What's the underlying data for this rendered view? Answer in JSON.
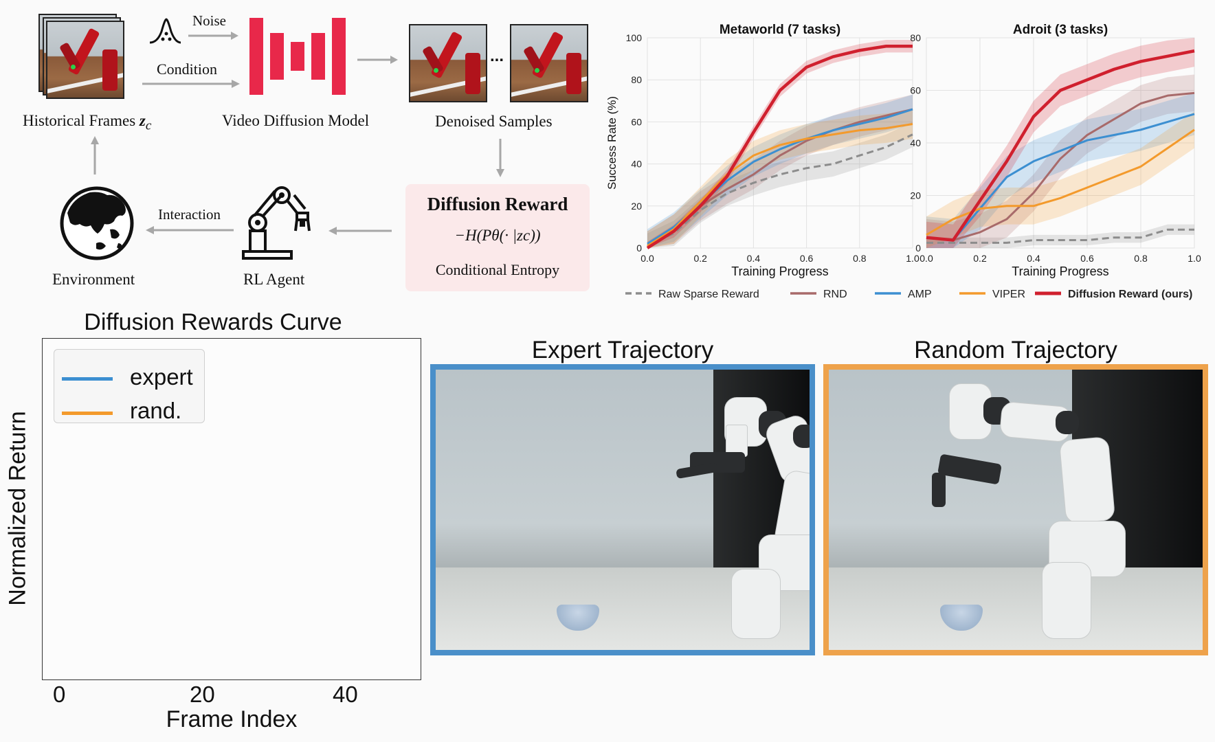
{
  "pipeline": {
    "historical_frames": "Historical Frames",
    "historical_frames_sym": "z",
    "historical_frames_sub": "c",
    "noise": "Noise",
    "condition": "Condition",
    "video_diffusion_model": "Video Diffusion Model",
    "denoised_samples": "Denoised Samples",
    "ellipsis": "...",
    "diffusion_reward_title": "Diffusion Reward",
    "diffusion_reward_formula": "−H(Pθ(· |zc))",
    "conditional_entropy": "Conditional Entropy",
    "interaction": "Interaction",
    "rl_agent": "RL Agent",
    "environment": "Environment"
  },
  "chart_data": [
    {
      "type": "line",
      "title": "Metaworld (7 tasks)",
      "xlabel": "Training Progress",
      "ylabel": "Success Rate (%)",
      "xlim": [
        0,
        1
      ],
      "ylim": [
        0,
        100
      ],
      "xticks": [
        "0.0",
        "0.2",
        "0.4",
        "0.6",
        "0.8",
        "1.0"
      ],
      "yticks": [
        "0",
        "20",
        "40",
        "60",
        "80",
        "100"
      ],
      "grid": true,
      "series": [
        {
          "name": "Raw Sparse Reward",
          "color": "#8c8c8c",
          "dashed": true,
          "x": [
            0,
            0.1,
            0.2,
            0.3,
            0.4,
            0.5,
            0.6,
            0.7,
            0.8,
            0.9,
            1.0
          ],
          "y": [
            1,
            7,
            18,
            26,
            31,
            35,
            38,
            40,
            44,
            48,
            54
          ],
          "band": 6
        },
        {
          "name": "RND",
          "color": "#a86a6a",
          "x": [
            0,
            0.1,
            0.2,
            0.3,
            0.4,
            0.5,
            0.6,
            0.7,
            0.8,
            0.9,
            1.0
          ],
          "y": [
            1,
            9,
            20,
            28,
            35,
            44,
            51,
            56,
            60,
            63,
            66
          ],
          "band": 7
        },
        {
          "name": "AMP",
          "color": "#3c8fd1",
          "x": [
            0,
            0.1,
            0.2,
            0.3,
            0.4,
            0.5,
            0.6,
            0.7,
            0.8,
            0.9,
            1.0
          ],
          "y": [
            2,
            10,
            21,
            32,
            41,
            47,
            52,
            56,
            59,
            62,
            66
          ],
          "band": 7
        },
        {
          "name": "VIPER",
          "color": "#f39a2c",
          "x": [
            0,
            0.1,
            0.2,
            0.3,
            0.4,
            0.5,
            0.6,
            0.7,
            0.8,
            0.9,
            1.0
          ],
          "y": [
            1,
            9,
            22,
            35,
            44,
            49,
            52,
            54,
            56,
            57,
            59
          ],
          "band": 7
        },
        {
          "name": "Diffusion Reward (ours)",
          "color": "#d0202e",
          "bold": true,
          "x": [
            0,
            0.1,
            0.2,
            0.3,
            0.4,
            0.5,
            0.6,
            0.7,
            0.8,
            0.9,
            1.0
          ],
          "y": [
            0,
            8,
            20,
            34,
            55,
            75,
            86,
            91,
            94,
            96,
            96
          ],
          "band": 3
        }
      ]
    },
    {
      "type": "line",
      "title": "Adroit (3 tasks)",
      "xlabel": "Training Progress",
      "ylabel": "",
      "xlim": [
        0,
        1
      ],
      "ylim": [
        0,
        80
      ],
      "xticks": [
        "0.0",
        "0.2",
        "0.4",
        "0.6",
        "0.8",
        "1.0"
      ],
      "yticks": [
        "0",
        "20",
        "40",
        "60",
        "80"
      ],
      "grid": true,
      "series": [
        {
          "name": "Raw Sparse Reward",
          "color": "#8c8c8c",
          "dashed": true,
          "x": [
            0,
            0.1,
            0.2,
            0.3,
            0.4,
            0.5,
            0.6,
            0.7,
            0.8,
            0.9,
            1.0
          ],
          "y": [
            2,
            2,
            2,
            2,
            3,
            3,
            3,
            4,
            4,
            7,
            7
          ],
          "band": 2
        },
        {
          "name": "RND",
          "color": "#a86a6a",
          "x": [
            0,
            0.1,
            0.2,
            0.3,
            0.4,
            0.5,
            0.6,
            0.7,
            0.8,
            0.9,
            1.0
          ],
          "y": [
            4,
            3,
            6,
            11,
            21,
            34,
            43,
            49,
            55,
            58,
            59
          ],
          "band": 7
        },
        {
          "name": "AMP",
          "color": "#3c8fd1",
          "x": [
            0,
            0.1,
            0.2,
            0.3,
            0.4,
            0.5,
            0.6,
            0.7,
            0.8,
            0.9,
            1.0
          ],
          "y": [
            4,
            3,
            15,
            27,
            33,
            37,
            41,
            43,
            45,
            48,
            51
          ],
          "band": 8
        },
        {
          "name": "VIPER",
          "color": "#f39a2c",
          "x": [
            0,
            0.1,
            0.2,
            0.3,
            0.4,
            0.5,
            0.6,
            0.7,
            0.8,
            0.9,
            1.0
          ],
          "y": [
            5,
            11,
            15,
            16,
            16,
            19,
            23,
            27,
            31,
            38,
            45
          ],
          "band": 7
        },
        {
          "name": "Diffusion Reward (ours)",
          "color": "#d0202e",
          "bold": true,
          "x": [
            0,
            0.1,
            0.2,
            0.3,
            0.4,
            0.5,
            0.6,
            0.7,
            0.8,
            0.9,
            1.0
          ],
          "y": [
            4,
            3,
            18,
            33,
            50,
            60,
            64,
            68,
            71,
            73,
            75
          ],
          "band": 6
        }
      ]
    },
    {
      "type": "line",
      "title": "Diffusion Rewards Curve",
      "xlabel": "Frame Index",
      "ylabel": "Normalized Return",
      "xticks": [
        "0",
        "20",
        "40"
      ],
      "xlim": [
        -2,
        50
      ],
      "grid": false,
      "legend_position": "top-left",
      "series": [
        {
          "name": "expert",
          "color": "#3c8fd1",
          "x": [],
          "y": []
        },
        {
          "name": "rand.",
          "color": "#f39a2c",
          "x": [],
          "y": []
        }
      ]
    }
  ],
  "legend": [
    {
      "name": "Raw Sparse Reward",
      "color": "#8c8c8c",
      "dashed": true
    },
    {
      "name": "RND",
      "color": "#a86a6a"
    },
    {
      "name": "AMP",
      "color": "#3c8fd1"
    },
    {
      "name": "VIPER",
      "color": "#f39a2c"
    },
    {
      "name": "Diffusion Reward (ours)",
      "color": "#d0202e",
      "bold": true
    }
  ],
  "trajectories": {
    "expert_title": "Expert Trajectory",
    "expert_color": "#4a8fc9",
    "random_title": "Random Trajectory",
    "random_color": "#eea24b"
  },
  "colors": {
    "reward_box": "#fbe9ea",
    "diffusion_bars": "#e8284a",
    "arrows": "#a7a7a7"
  }
}
